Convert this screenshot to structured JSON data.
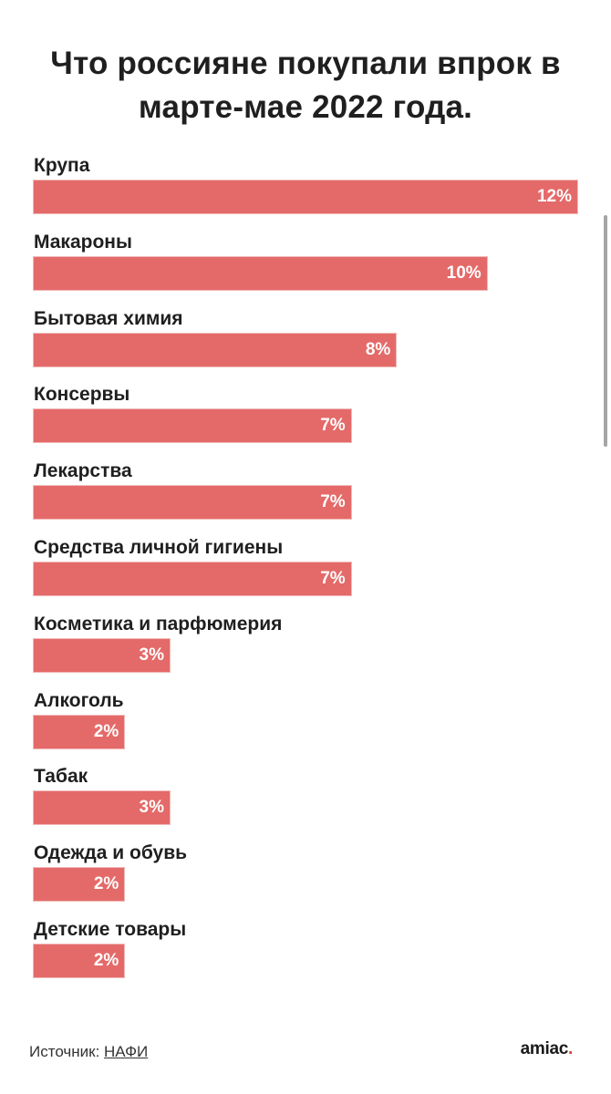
{
  "title": "Что россияне покупали впрок в марте-мае 2022 года.",
  "source": {
    "label": "Источник:",
    "link_text": "НАФИ"
  },
  "brand": {
    "name": "amiac",
    "dot": "."
  },
  "colors": {
    "bar": "#e46a69",
    "brand_dot": "#e53935"
  },
  "chart_data": {
    "type": "bar",
    "orientation": "horizontal",
    "title": "Что россияне покупали впрок в марте-мае 2022 года.",
    "xlabel": "",
    "ylabel": "",
    "xlim": [
      0,
      12
    ],
    "grid": false,
    "legend": "none",
    "categories": [
      "Крупа",
      "Макароны",
      "Бытовая химия",
      "Консервы",
      "Лекарства",
      "Средства личной гигиены",
      "Косметика и парфюмерия",
      "Алкоголь",
      "Табак",
      "Одежда и обувь",
      "Детские товары"
    ],
    "values": [
      12,
      10,
      8,
      7,
      7,
      7,
      3,
      2,
      3,
      2,
      2
    ],
    "value_labels": [
      "12%",
      "10%",
      "8%",
      "7%",
      "7%",
      "7%",
      "3%",
      "2%",
      "3%",
      "2%",
      "2%"
    ]
  }
}
